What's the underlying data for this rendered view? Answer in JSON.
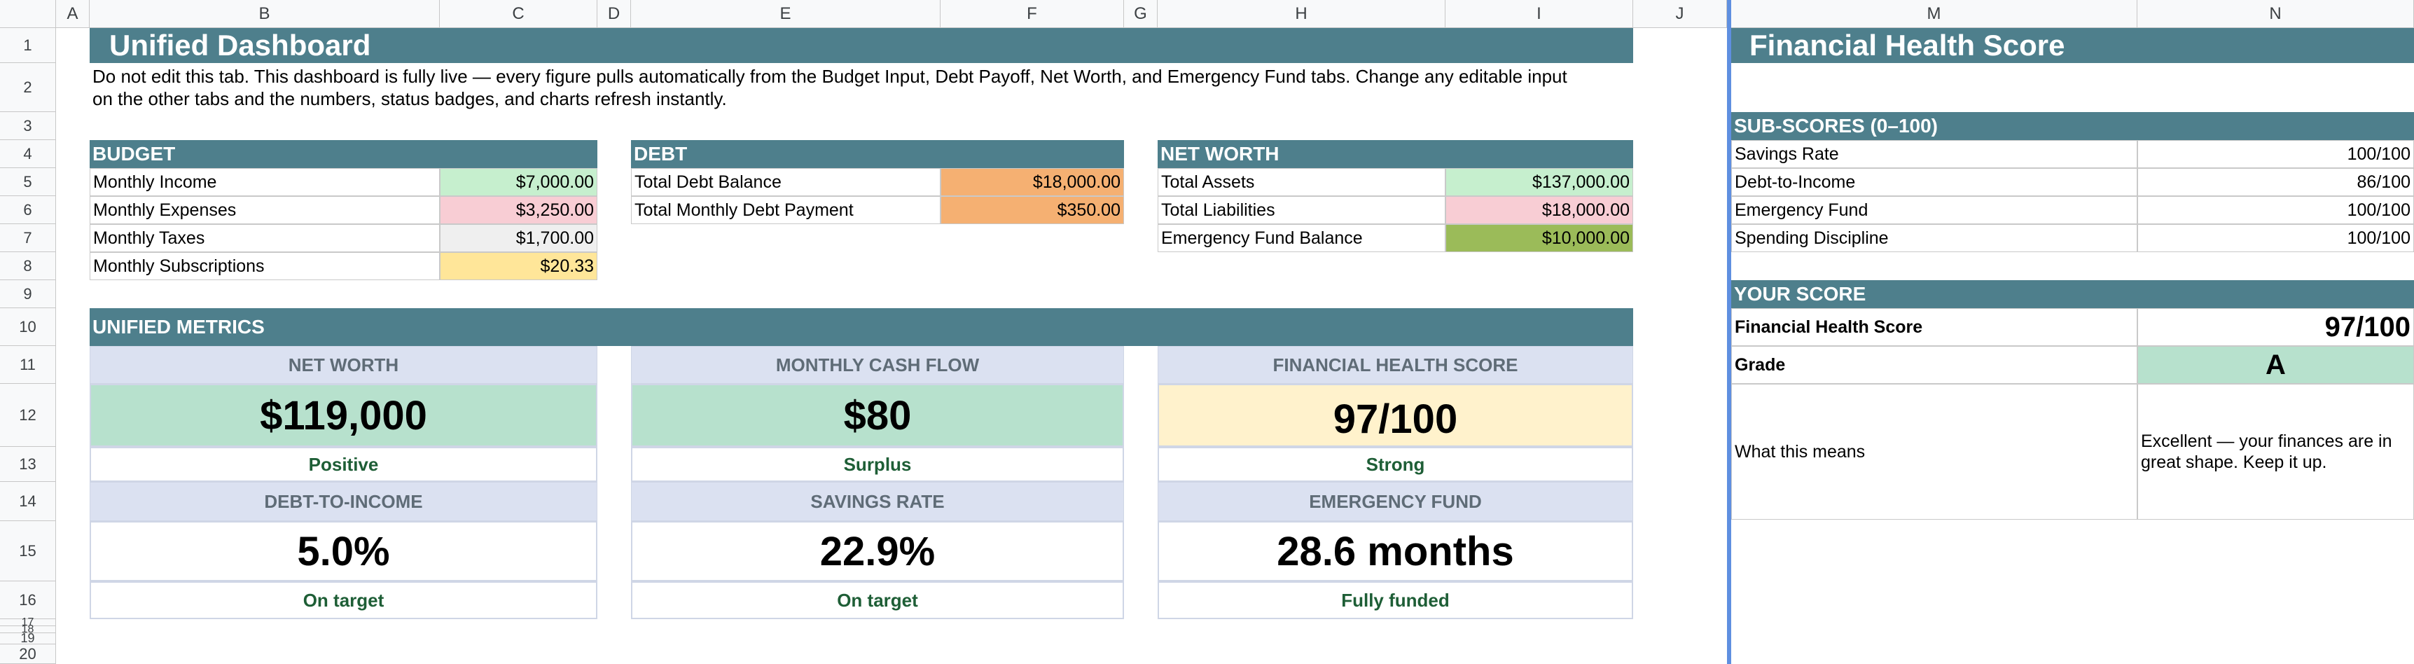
{
  "columns": [
    "A",
    "B",
    "C",
    "D",
    "E",
    "F",
    "G",
    "H",
    "I",
    "J",
    "M",
    "N"
  ],
  "rows": [
    "1",
    "2",
    "3",
    "4",
    "5",
    "6",
    "7",
    "8",
    "9",
    "10",
    "11",
    "12",
    "13",
    "14",
    "15",
    "16",
    "17",
    "18",
    "19",
    "20"
  ],
  "dashboard": {
    "title": "Unified Dashboard",
    "note_line1": "Do not edit this tab. This dashboard is fully live — every figure pulls automatically from the Budget Input, Debt Payoff, Net Worth, and Emergency Fund tabs. Change any editable input",
    "note_line2": "on the other tabs and the numbers, status badges, and charts refresh instantly."
  },
  "budget": {
    "header": "BUDGET",
    "rows": [
      {
        "label": "Monthly Income",
        "value": "$7,000.00",
        "color": "#c6efce"
      },
      {
        "label": "Monthly Expenses",
        "value": "$3,250.00",
        "color": "#f8cdd4"
      },
      {
        "label": "Monthly Taxes",
        "value": "$1,700.00",
        "color": "#efefef"
      },
      {
        "label": "Monthly Subscriptions",
        "value": "$20.33",
        "color": "#ffe699"
      }
    ]
  },
  "debt": {
    "header": "DEBT",
    "rows": [
      {
        "label": "Total Debt Balance",
        "value": "$18,000.00",
        "color": "#f5b072"
      },
      {
        "label": "Total Monthly Debt Payment",
        "value": "$350.00",
        "color": "#f5b072"
      }
    ]
  },
  "networth": {
    "header": "NET WORTH",
    "rows": [
      {
        "label": "Total Assets",
        "value": "$137,000.00",
        "color": "#c6efce"
      },
      {
        "label": "Total Liabilities",
        "value": "$18,000.00",
        "color": "#f8cdd4"
      },
      {
        "label": "Emergency Fund Balance",
        "value": "$10,000.00",
        "color": "#9bbb59"
      }
    ]
  },
  "metrics": {
    "header": "UNIFIED METRICS",
    "net_worth": {
      "label": "NET WORTH",
      "value": "$119,000",
      "status": "Positive",
      "color": "#b7e1cd"
    },
    "cash_flow": {
      "label": "MONTHLY CASH FLOW",
      "value": "$80",
      "status": "Surplus",
      "color": "#b7e1cd"
    },
    "health": {
      "label": "FINANCIAL HEALTH SCORE",
      "value": "97/100",
      "status": "Strong",
      "color": "#fff2cc"
    },
    "dti": {
      "label": "DEBT-TO-INCOME",
      "value": "5.0%",
      "status": "On target"
    },
    "savings": {
      "label": "SAVINGS RATE",
      "value": "22.9%",
      "status": "On target"
    },
    "emergency": {
      "label": "EMERGENCY FUND",
      "value": "28.6 months",
      "status": "Fully funded"
    }
  },
  "score_panel": {
    "title": "Financial Health Score",
    "subscores_header": "SUB-SCORES (0–100)",
    "subscores": [
      {
        "label": "Savings Rate",
        "value": "100/100"
      },
      {
        "label": "Debt-to-Income",
        "value": "86/100"
      },
      {
        "label": "Emergency Fund",
        "value": "100/100"
      },
      {
        "label": "Spending Discipline",
        "value": "100/100"
      }
    ],
    "your_score_header": "YOUR SCORE",
    "score_label": "Financial Health Score",
    "score_value": "97/100",
    "grade_label": "Grade",
    "grade_value": "A",
    "grade_color": "#b7e1cd",
    "meaning_label": "What this means",
    "meaning_text": "Excellent — your finances are in great shape. Keep it up."
  }
}
